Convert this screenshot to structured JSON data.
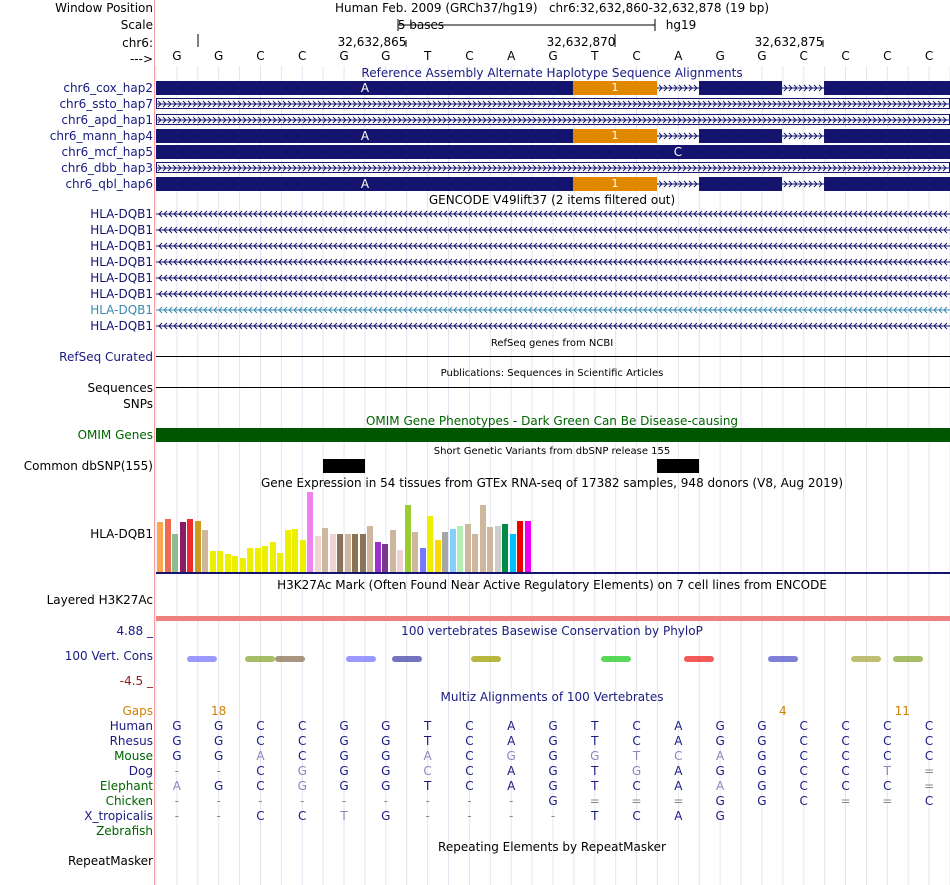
{
  "header": {
    "window_position_label": "Window Position",
    "window_position_value": "Human Feb. 2009 (GRCh37/hg19)   chr6:32,632,860-32,632,878 (19 bp)",
    "scale_label": "Scale",
    "scale_text": "5 bases",
    "scale_assembly": "hg19",
    "chrom_label": "chr6:",
    "positions": [
      "32,632,865",
      "32,632,870",
      "32,632,875"
    ],
    "arrow_label": "--->",
    "bases": [
      "G",
      "G",
      "C",
      "C",
      "G",
      "G",
      "T",
      "C",
      "A",
      "G",
      "T",
      "C",
      "A",
      "G",
      "G",
      "C",
      "C",
      "C",
      "C"
    ]
  },
  "alt_haplotypes": {
    "title": "Reference Assembly Alternate Haplotype Sequence Alignments",
    "tracks": [
      {
        "name": "chr6_cox_hap2",
        "style": "split",
        "label_a": "A",
        "label_mid": "1"
      },
      {
        "name": "chr6_ssto_hap7",
        "style": "line"
      },
      {
        "name": "chr6_apd_hap1",
        "style": "line"
      },
      {
        "name": "chr6_mann_hap4",
        "style": "split",
        "label_a": "A",
        "label_mid": "1"
      },
      {
        "name": "chr6_mcf_hap5",
        "style": "full",
        "label_c": "C"
      },
      {
        "name": "chr6_dbb_hap3",
        "style": "line"
      },
      {
        "name": "chr6_qbl_hap6",
        "style": "split",
        "label_a": "A",
        "label_mid": "1"
      }
    ]
  },
  "gencode": {
    "title": "GENCODE V49lift37 (2 items filtered out)",
    "genes": [
      "HLA-DQB1",
      "HLA-DQB1",
      "HLA-DQB1",
      "HLA-DQB1",
      "HLA-DQB1",
      "HLA-DQB1",
      "HLA-DQB1",
      "HLA-DQB1"
    ]
  },
  "refseq": {
    "title": "RefSeq genes from NCBI",
    "label": "RefSeq Curated"
  },
  "publications": {
    "title": "Publications: Sequences in Scientific Articles",
    "label": "Sequences"
  },
  "snps": {
    "label": "SNPs"
  },
  "omim": {
    "title": "OMIM Gene Phenotypes - Dark Green Can Be Disease-causing",
    "label": "OMIM Genes",
    "color": "#005500"
  },
  "dbsnp": {
    "title": "Short Genetic Variants from dbSNP release 155",
    "label": "Common dbSNP(155)"
  },
  "gtex": {
    "title": "Gene Expression in 54 tissues from GTEx RNA-seq of 17382 samples, 948 donors (V8, Aug 2019)",
    "label": "HLA-DQB1",
    "bars": [
      {
        "v": 0.62,
        "c": "#ffa54f"
      },
      {
        "v": 0.66,
        "c": "#ee6a50"
      },
      {
        "v": 0.48,
        "c": "#8fbc8f"
      },
      {
        "v": 0.62,
        "c": "#8b1c62"
      },
      {
        "v": 0.66,
        "c": "#ee2c2c"
      },
      {
        "v": 0.64,
        "c": "#cd9b1d"
      },
      {
        "v": 0.53,
        "c": "#cdb79e"
      },
      {
        "v": 0.26,
        "c": "#eeee00"
      },
      {
        "v": 0.26,
        "c": "#eeee00"
      },
      {
        "v": 0.22,
        "c": "#eeee00"
      },
      {
        "v": 0.2,
        "c": "#eeee00"
      },
      {
        "v": 0.18,
        "c": "#eeee00"
      },
      {
        "v": 0.3,
        "c": "#eeee00"
      },
      {
        "v": 0.3,
        "c": "#eeee00"
      },
      {
        "v": 0.32,
        "c": "#eeee00"
      },
      {
        "v": 0.38,
        "c": "#eeee00"
      },
      {
        "v": 0.24,
        "c": "#eeee00"
      },
      {
        "v": 0.52,
        "c": "#eeee00"
      },
      {
        "v": 0.54,
        "c": "#eeee00"
      },
      {
        "v": 0.4,
        "c": "#eeee00"
      },
      {
        "v": 1.0,
        "c": "#ee82ee"
      },
      {
        "v": 0.45,
        "c": "#eed5d2"
      },
      {
        "v": 0.55,
        "c": "#cdb79e"
      },
      {
        "v": 0.48,
        "c": "#eed5d2"
      },
      {
        "v": 0.48,
        "c": "#8b7355"
      },
      {
        "v": 0.48,
        "c": "#cdb79e"
      },
      {
        "v": 0.48,
        "c": "#8b7355"
      },
      {
        "v": 0.48,
        "c": "#8b7355"
      },
      {
        "v": 0.58,
        "c": "#cdb79e"
      },
      {
        "v": 0.38,
        "c": "#9a32cd"
      },
      {
        "v": 0.35,
        "c": "#7a378b"
      },
      {
        "v": 0.52,
        "c": "#cdb79e"
      },
      {
        "v": 0.28,
        "c": "#eed5d2"
      },
      {
        "v": 0.84,
        "c": "#9acd32"
      },
      {
        "v": 0.5,
        "c": "#cdb79e"
      },
      {
        "v": 0.3,
        "c": "#7777ff"
      },
      {
        "v": 0.7,
        "c": "#eeee00"
      },
      {
        "v": 0.4,
        "c": "#ffd700"
      },
      {
        "v": 0.5,
        "c": "#a6a6a6"
      },
      {
        "v": 0.54,
        "c": "#87ceff"
      },
      {
        "v": 0.58,
        "c": "#b4eeb4"
      },
      {
        "v": 0.6,
        "c": "#cdb79e"
      },
      {
        "v": 0.48,
        "c": "#cdb79e"
      },
      {
        "v": 0.84,
        "c": "#cdb79e"
      },
      {
        "v": 0.56,
        "c": "#cdb79e"
      },
      {
        "v": 0.58,
        "c": "#cdcdcd"
      },
      {
        "v": 0.6,
        "c": "#008b45"
      },
      {
        "v": 0.48,
        "c": "#00bfff"
      },
      {
        "v": 0.64,
        "c": "#ee0000"
      },
      {
        "v": 0.64,
        "c": "#ee00ee"
      }
    ]
  },
  "h3k27ac": {
    "title": "H3K27Ac Mark (Often Found Near Active Regulatory Elements) on 7 cell lines from ENCODE",
    "label": "Layered H3K27Ac"
  },
  "phylop": {
    "title": "100 vertebrates Basewise Conservation by PhyloP",
    "label": "100 Vert. Cons",
    "max": "4.88 _",
    "min": "-4.5 _"
  },
  "multiz": {
    "title": "Multiz Alignments of 100 Vertebrates",
    "gaps_label": "Gaps",
    "gaps": [
      {
        "pos": 1.5,
        "t": "18"
      },
      {
        "pos": 15,
        "t": "4"
      },
      {
        "pos": 18,
        "t": "11"
      }
    ],
    "species": [
      {
        "name": "Human",
        "cls": "ln",
        "seq": [
          "G",
          "G",
          "C",
          "C",
          "G",
          "G",
          "T",
          "C",
          "A",
          "G",
          "T",
          "C",
          "A",
          "G",
          "G",
          "C",
          "C",
          "C",
          "C"
        ]
      },
      {
        "name": "Rhesus",
        "cls": "ln",
        "seq": [
          "G",
          "G",
          "C",
          "C",
          "G",
          "G",
          "T",
          "C",
          "A",
          "G",
          "T",
          "C",
          "A",
          "G",
          "G",
          "C",
          "C",
          "C",
          "C"
        ]
      },
      {
        "name": "Mouse",
        "cls": "lg",
        "seq": [
          "G",
          "G",
          "A",
          "C",
          "G",
          "G",
          "A",
          "C",
          "G",
          "G",
          "G",
          "T",
          "C",
          "A",
          "G",
          "C",
          "C",
          "C",
          "C"
        ]
      },
      {
        "name": "Dog",
        "cls": "ln",
        "seq": [
          "-",
          "-",
          "C",
          "G",
          "G",
          "G",
          "C",
          "C",
          "A",
          "G",
          "T",
          "G",
          "A",
          "G",
          "G",
          "C",
          "C",
          "T",
          "="
        ]
      },
      {
        "name": "Elephant",
        "cls": "lg",
        "seq": [
          "A",
          "G",
          "C",
          "G",
          "G",
          "G",
          "T",
          "C",
          "A",
          "G",
          "T",
          "C",
          "A",
          "A",
          "G",
          "C",
          "C",
          "C",
          "="
        ]
      },
      {
        "name": "Chicken",
        "cls": "lg",
        "seq": [
          "-",
          "-",
          "-",
          "-",
          "-",
          "-",
          "-",
          "-",
          "-",
          "G",
          "=",
          "=",
          "=",
          "G",
          "G",
          "C",
          "=",
          "=",
          "C"
        ]
      },
      {
        "name": "X_tropicalis",
        "cls": "ln",
        "seq": [
          "-",
          "-",
          "C",
          "C",
          "T",
          "G",
          "-",
          "-",
          "-",
          "-",
          "T",
          "C",
          "A",
          "G",
          "",
          "",
          "",
          "",
          ""
        ]
      },
      {
        "name": "Zebrafish",
        "cls": "lg",
        "seq": [
          "",
          "",
          "",
          "",
          "",
          "",
          "",
          "",
          "",
          "",
          "",
          "",
          "",
          "",
          "",
          "",
          "",
          "",
          ""
        ]
      }
    ]
  },
  "repeatmasker": {
    "title": "Repeating Elements by RepeatMasker",
    "label": "RepeatMasker"
  }
}
